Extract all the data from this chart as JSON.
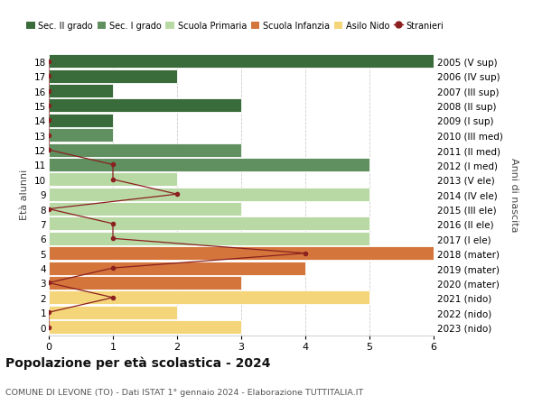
{
  "ages": [
    18,
    17,
    16,
    15,
    14,
    13,
    12,
    11,
    10,
    9,
    8,
    7,
    6,
    5,
    4,
    3,
    2,
    1,
    0
  ],
  "right_labels": [
    "2005 (V sup)",
    "2006 (IV sup)",
    "2007 (III sup)",
    "2008 (II sup)",
    "2009 (I sup)",
    "2010 (III med)",
    "2011 (II med)",
    "2012 (I med)",
    "2013 (V ele)",
    "2014 (IV ele)",
    "2015 (III ele)",
    "2016 (II ele)",
    "2017 (I ele)",
    "2018 (mater)",
    "2019 (mater)",
    "2020 (mater)",
    "2021 (nido)",
    "2022 (nido)",
    "2023 (nido)"
  ],
  "bar_values": [
    6,
    2,
    1,
    3,
    1,
    1,
    3,
    5,
    2,
    5,
    3,
    5,
    5,
    6,
    4,
    3,
    5,
    2,
    3
  ],
  "bar_colors": [
    "#3a6b3a",
    "#3a6b3a",
    "#3a6b3a",
    "#3a6b3a",
    "#3a6b3a",
    "#608f60",
    "#608f60",
    "#608f60",
    "#b8d9a4",
    "#b8d9a4",
    "#b8d9a4",
    "#b8d9a4",
    "#b8d9a4",
    "#d4763b",
    "#d4763b",
    "#d4763b",
    "#f5d57a",
    "#f5d57a",
    "#f5d57a"
  ],
  "stranieri_values": [
    0,
    0,
    0,
    0,
    0,
    0,
    0,
    1,
    1,
    2,
    0,
    1,
    1,
    4,
    1,
    0,
    1,
    0,
    0
  ],
  "legend_labels": [
    "Sec. II grado",
    "Sec. I grado",
    "Scuola Primaria",
    "Scuola Infanzia",
    "Asilo Nido",
    "Stranieri"
  ],
  "legend_colors": [
    "#3a6b3a",
    "#608f60",
    "#b8d9a4",
    "#d4763b",
    "#f5d57a",
    "#8b2020"
  ],
  "title": "Popolazione per età scolastica - 2024",
  "subtitle": "COMUNE DI LEVONE (TO) - Dati ISTAT 1° gennaio 2024 - Elaborazione TUTTITALIA.IT",
  "ylabel_left": "Età alunni",
  "ylabel_right": "Anni di nascita",
  "xlim_max": 6,
  "bg_color": "#ffffff",
  "grid_color": "#cccccc",
  "stranieri_line_color": "#8b2020",
  "stranieri_dot_color": "#8b2020"
}
